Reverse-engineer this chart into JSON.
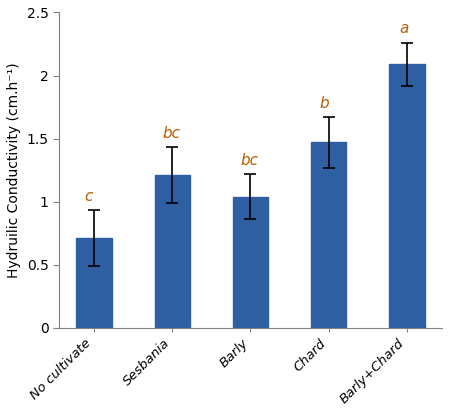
{
  "categories": [
    "No cultivate",
    "Sesbania",
    "Barly",
    "Chard",
    "Barly+Chard"
  ],
  "values": [
    0.71,
    1.21,
    1.04,
    1.47,
    2.09
  ],
  "errors": [
    0.22,
    0.22,
    0.18,
    0.2,
    0.17
  ],
  "labels": [
    "c",
    "bc",
    "bc",
    "b",
    "a"
  ],
  "bar_color": "#2E5FA3",
  "ylabel": "Hydruilic Conductivity (cm.h⁻¹)",
  "ylim": [
    0,
    2.5
  ],
  "yticks": [
    0,
    0.5,
    1.0,
    1.5,
    2.0,
    2.5
  ],
  "ytick_labels": [
    "0",
    "0.5",
    "1",
    "1.5",
    "2",
    "2.5"
  ],
  "label_color": "#B85C00",
  "label_fontsize": 11,
  "bar_width": 0.45,
  "figsize": [
    4.49,
    4.13
  ],
  "dpi": 100,
  "label_x_offset": [
    -0.12,
    -0.13,
    -0.13,
    -0.12,
    -0.1
  ]
}
